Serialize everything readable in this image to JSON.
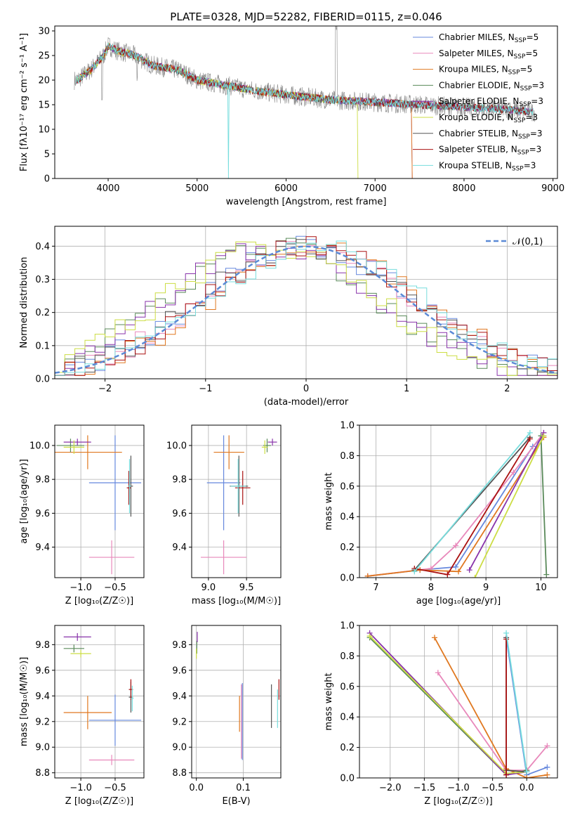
{
  "figure": {
    "title": "PLATE=0328, MJD=52282, FIBERID=0115, z=0.046"
  },
  "colors": {
    "Chabrier MILES": "#6688dd",
    "Salpeter MILES": "#e888bb",
    "Kroupa MILES": "#e07820",
    "Chabrier ELODIE": "#5a8a5a",
    "Salpeter ELODIE": "#8833aa",
    "Kroupa ELODIE": "#ccdd44",
    "Chabrier STELIB": "#555555",
    "Salpeter STELIB": "#aa1111",
    "Kroupa STELIB": "#77dddd"
  },
  "chart_data": [
    {
      "id": "spectrum",
      "type": "line",
      "xlabel": "wavelength [Angstrom, rest frame]",
      "ylabel": "Flux [fλ10⁻¹⁷ erg cm⁻² s⁻¹ A⁻¹]",
      "xlim": [
        3400,
        9050
      ],
      "ylim": [
        0,
        31
      ],
      "xticks": [
        4000,
        5000,
        6000,
        7000,
        8000,
        9000
      ],
      "yticks": [
        0,
        5,
        10,
        15,
        20,
        25,
        30
      ],
      "legend_position": "top-right",
      "legend": [
        {
          "name": "Chabrier MILES",
          "sub": "SSP",
          "n": "=5"
        },
        {
          "name": "Salpeter MILES",
          "sub": "SSP",
          "n": "=5"
        },
        {
          "name": "Kroupa MILES",
          "sub": "SSP",
          "n": "=5"
        },
        {
          "name": "Chabrier ELODIE",
          "sub": "SSP",
          "n": "=3"
        },
        {
          "name": "Salpeter ELODIE",
          "sub": "SSP",
          "n": "=3"
        },
        {
          "name": "Kroupa ELODIE",
          "sub": "SSP",
          "n": "=3"
        },
        {
          "name": "Chabrier STELIB",
          "sub": "SSP",
          "n": "=3"
        },
        {
          "name": "Salpeter STELIB",
          "sub": "SSP",
          "n": "=3"
        },
        {
          "name": "Kroupa STELIB",
          "sub": "SSP",
          "n": "=3"
        }
      ],
      "data_x": [
        3650,
        3800,
        3950,
        4000,
        4100,
        4300,
        4500,
        4800,
        5000,
        5300,
        5600,
        6000,
        6500,
        7000,
        7500,
        8000,
        8500,
        8800
      ],
      "data_y": [
        20,
        22,
        25,
        27,
        26,
        25,
        23,
        22,
        20,
        19,
        18,
        17,
        16,
        15.5,
        15,
        14.5,
        14,
        13.5
      ]
    },
    {
      "id": "residuals",
      "type": "histogram",
      "xlabel": "(data-model)/error",
      "ylabel": "Normed distribution",
      "xlim": [
        -2.5,
        2.5
      ],
      "ylim": [
        0,
        0.46
      ],
      "xticks": [
        -2,
        -1,
        0,
        1,
        2
      ],
      "yticks": [
        0.0,
        0.1,
        0.2,
        0.3,
        0.4
      ],
      "legend_position": "top-right",
      "reference_label": "𝒩(0,1)"
    },
    {
      "id": "age-vs-Z",
      "type": "errorbar",
      "xlabel": "Z [log₁₀(Z/Z☉)]",
      "ylabel": "age  [log₁₀(age/yr)]",
      "xlim": [
        -1.38,
        -0.08
      ],
      "ylim": [
        9.22,
        10.12
      ],
      "xticks": [
        -1.0,
        -0.5
      ],
      "yticks": [
        9.4,
        9.6,
        9.8,
        10.0
      ],
      "points": [
        {
          "series": "Chabrier MILES",
          "x": -0.5,
          "xerr": 0.38,
          "y": 9.78,
          "yerr": 0.28
        },
        {
          "series": "Salpeter MILES",
          "x": -0.55,
          "xerr": 0.33,
          "y": 9.34,
          "yerr": 0.1
        },
        {
          "series": "Kroupa MILES",
          "x": -0.9,
          "xerr": 0.5,
          "y": 9.96,
          "yerr": 0.1
        },
        {
          "series": "Chabrier ELODIE",
          "x": -1.15,
          "xerr": 0.2,
          "y": 10.0,
          "yerr": 0.04
        },
        {
          "series": "Salpeter ELODIE",
          "x": -1.05,
          "xerr": 0.2,
          "y": 10.02,
          "yerr": 0.02
        },
        {
          "series": "Kroupa ELODIE",
          "x": -1.1,
          "xerr": 0.15,
          "y": 9.99,
          "yerr": 0.04
        },
        {
          "series": "Chabrier STELIB",
          "x": -0.27,
          "xerr": 0.03,
          "y": 9.76,
          "yerr": 0.18
        },
        {
          "series": "Salpeter STELIB",
          "x": -0.3,
          "xerr": 0.03,
          "y": 9.75,
          "yerr": 0.1
        },
        {
          "series": "Kroupa STELIB",
          "x": -0.29,
          "xerr": 0.02,
          "y": 9.76,
          "yerr": 0.16
        }
      ]
    },
    {
      "id": "age-vs-mass",
      "type": "errorbar",
      "xlabel": "mass [log₁₀(M/M☉)]",
      "ylabel": "",
      "xlim": [
        8.78,
        9.95
      ],
      "ylim": [
        9.22,
        10.12
      ],
      "xticks": [
        9.0,
        9.5
      ],
      "yticks": [
        9.4,
        9.6,
        9.8,
        10.0
      ],
      "points": [
        {
          "series": "Chabrier MILES",
          "x": 9.2,
          "xerr": 0.22,
          "y": 9.78,
          "yerr": 0.28
        },
        {
          "series": "Salpeter MILES",
          "x": 9.2,
          "xerr": 0.3,
          "y": 9.34,
          "yerr": 0.1
        },
        {
          "series": "Kroupa MILES",
          "x": 9.27,
          "xerr": 0.2,
          "y": 9.96,
          "yerr": 0.1
        },
        {
          "series": "Chabrier ELODIE",
          "x": 9.77,
          "xerr": 0.05,
          "y": 10.0,
          "yerr": 0.04
        },
        {
          "series": "Salpeter ELODIE",
          "x": 9.84,
          "xerr": 0.06,
          "y": 10.02,
          "yerr": 0.02
        },
        {
          "series": "Kroupa ELODIE",
          "x": 9.74,
          "xerr": 0.04,
          "y": 9.99,
          "yerr": 0.04
        },
        {
          "series": "Chabrier STELIB",
          "x": 9.4,
          "xerr": 0.12,
          "y": 9.76,
          "yerr": 0.18
        },
        {
          "series": "Salpeter STELIB",
          "x": 9.45,
          "xerr": 0.1,
          "y": 9.75,
          "yerr": 0.1
        },
        {
          "series": "Kroupa STELIB",
          "x": 9.39,
          "xerr": 0.1,
          "y": 9.76,
          "yerr": 0.16
        }
      ]
    },
    {
      "id": "weight-vs-age",
      "type": "line",
      "xlabel": "age  [log₁₀(age/yr)]",
      "ylabel": "mass weight",
      "xlim": [
        6.7,
        10.3
      ],
      "ylim": [
        0,
        1.0
      ],
      "xticks": [
        7,
        8,
        9,
        10
      ],
      "yticks": [
        0.0,
        0.2,
        0.4,
        0.6,
        0.8,
        1.0
      ],
      "series": [
        {
          "name": "Chabrier MILES",
          "x": [
            6.85,
            7.8,
            8.45,
            9.85,
            10.05
          ],
          "y": [
            0.01,
            0.05,
            0.07,
            0.86,
            0.93
          ]
        },
        {
          "name": "Salpeter MILES",
          "x": [
            6.85,
            8.0,
            8.45,
            9.5,
            10.05
          ],
          "y": [
            0.01,
            0.06,
            0.21,
            0.69,
            0.95
          ]
        },
        {
          "name": "Kroupa MILES",
          "x": [
            6.85,
            7.8,
            8.5,
            10.05
          ],
          "y": [
            0.01,
            0.05,
            0.04,
            0.92
          ]
        },
        {
          "name": "Chabrier ELODIE",
          "x": [
            10.0,
            10.1
          ],
          "y": [
            0.93,
            0.02
          ]
        },
        {
          "name": "Salpeter ELODIE",
          "x": [
            8.7,
            10.05
          ],
          "y": [
            0.05,
            0.95
          ]
        },
        {
          "name": "Kroupa ELODIE",
          "x": [
            8.8,
            10.05
          ],
          "y": [
            0.0,
            0.93
          ]
        },
        {
          "name": "Chabrier STELIB",
          "x": [
            7.7,
            9.8
          ],
          "y": [
            0.05,
            0.92
          ]
        },
        {
          "name": "Salpeter STELIB",
          "x": [
            7.7,
            8.3,
            9.8
          ],
          "y": [
            0.06,
            0.02,
            0.91
          ]
        },
        {
          "name": "Kroupa STELIB",
          "x": [
            7.7,
            9.8
          ],
          "y": [
            0.04,
            0.95
          ]
        }
      ]
    },
    {
      "id": "mass-vs-Z",
      "type": "errorbar",
      "xlabel": "Z [log₁₀(Z/Z☉)]",
      "ylabel": "mass [log₁₀(M/M☉)]",
      "xlim": [
        -1.38,
        -0.08
      ],
      "ylim": [
        8.76,
        9.95
      ],
      "xticks": [
        -1.0,
        -0.5
      ],
      "yticks": [
        8.8,
        9.0,
        9.2,
        9.4,
        9.6,
        9.8
      ],
      "points": [
        {
          "series": "Chabrier MILES",
          "x": -0.5,
          "xerr": 0.38,
          "y": 9.21,
          "yerr": 0.2
        },
        {
          "series": "Salpeter MILES",
          "x": -0.55,
          "xerr": 0.33,
          "y": 8.9,
          "yerr": 0.04
        },
        {
          "series": "Kroupa MILES",
          "x": -0.9,
          "xerr": 0.35,
          "y": 9.27,
          "yerr": 0.13
        },
        {
          "series": "Chabrier ELODIE",
          "x": -1.1,
          "xerr": 0.15,
          "y": 9.77,
          "yerr": 0.03
        },
        {
          "series": "Salpeter ELODIE",
          "x": -1.05,
          "xerr": 0.2,
          "y": 9.86,
          "yerr": 0.03
        },
        {
          "series": "Kroupa ELODIE",
          "x": -1.0,
          "xerr": 0.15,
          "y": 9.73,
          "yerr": 0.03
        },
        {
          "series": "Chabrier STELIB",
          "x": -0.27,
          "xerr": 0.03,
          "y": 9.39,
          "yerr": 0.12
        },
        {
          "series": "Salpeter STELIB",
          "x": -0.27,
          "xerr": 0.03,
          "y": 9.45,
          "yerr": 0.08
        },
        {
          "series": "Kroupa STELIB",
          "x": -0.25,
          "xerr": 0.02,
          "y": 9.38,
          "yerr": 0.1
        }
      ]
    },
    {
      "id": "mass-vs-EBV",
      "type": "errorbar",
      "xlabel": "E(B-V)",
      "ylabel": "",
      "xlim": [
        -0.01,
        0.18
      ],
      "ylim": [
        8.76,
        9.95
      ],
      "xticks": [
        0.0,
        0.1
      ],
      "yticks": [
        8.8,
        9.0,
        9.2,
        9.4,
        9.6,
        9.8
      ],
      "points": [
        {
          "series": "Chabrier MILES",
          "x": 0.098,
          "y": 9.2,
          "yerr": 0.3
        },
        {
          "series": "Salpeter MILES",
          "x": 0.096,
          "y": 9.2,
          "yerr": 0.29
        },
        {
          "series": "Kroupa MILES",
          "x": 0.092,
          "y": 9.26,
          "yerr": 0.14
        },
        {
          "series": "Chabrier ELODIE",
          "x": 0.001,
          "y": 9.78,
          "yerr": 0.05
        },
        {
          "series": "Salpeter ELODIE",
          "x": 0.002,
          "y": 9.86,
          "yerr": 0.04
        },
        {
          "series": "Kroupa ELODIE",
          "x": 0.0,
          "y": 9.73,
          "yerr": 0.04
        },
        {
          "series": "Chabrier STELIB",
          "x": 0.16,
          "y": 9.32,
          "yerr": 0.17
        },
        {
          "series": "Salpeter STELIB",
          "x": 0.176,
          "y": 9.45,
          "yerr": 0.08
        },
        {
          "series": "Kroupa STELIB",
          "x": 0.173,
          "y": 9.3,
          "yerr": 0.15
        }
      ]
    },
    {
      "id": "weight-vs-Z",
      "type": "line",
      "xlabel": "Z [log₁₀(Z/Z☉)]",
      "ylabel": "mass weight",
      "xlim": [
        -2.45,
        0.45
      ],
      "ylim": [
        0,
        1.0
      ],
      "xticks": [
        -2.0,
        -1.5,
        -1.0,
        -0.5,
        0.0
      ],
      "yticks": [
        0.0,
        0.2,
        0.4,
        0.6,
        0.8,
        1.0
      ],
      "series": [
        {
          "name": "Chabrier MILES",
          "x": [
            -0.3,
            0.0,
            0.3
          ],
          "y": [
            0.92,
            0.02,
            0.07
          ]
        },
        {
          "name": "Salpeter MILES",
          "x": [
            -1.3,
            -0.3,
            0.0,
            0.3
          ],
          "y": [
            0.69,
            0.05,
            0.05,
            0.21
          ]
        },
        {
          "name": "Kroupa MILES",
          "x": [
            -1.35,
            -0.3,
            0.0,
            0.3
          ],
          "y": [
            0.92,
            0.06,
            0.0,
            0.02
          ]
        },
        {
          "name": "Chabrier ELODIE",
          "x": [
            -2.3,
            -0.3,
            0.0
          ],
          "y": [
            0.92,
            0.02,
            0.05
          ]
        },
        {
          "name": "Salpeter ELODIE",
          "x": [
            -2.3,
            -0.3,
            0.0
          ],
          "y": [
            0.95,
            0.02,
            0.04
          ]
        },
        {
          "name": "Kroupa ELODIE",
          "x": [
            -2.3,
            -0.3,
            0.0
          ],
          "y": [
            0.93,
            0.03,
            0.04
          ]
        },
        {
          "name": "Chabrier STELIB",
          "x": [
            -0.3,
            -0.3,
            0.0
          ],
          "y": [
            0.92,
            0.05,
            0.04
          ]
        },
        {
          "name": "Salpeter STELIB",
          "x": [
            -0.3,
            -0.3
          ],
          "y": [
            0.91,
            0.02
          ]
        },
        {
          "name": "Kroupa STELIB",
          "x": [
            -0.3,
            0.0
          ],
          "y": [
            0.95,
            0.04
          ]
        }
      ]
    }
  ]
}
